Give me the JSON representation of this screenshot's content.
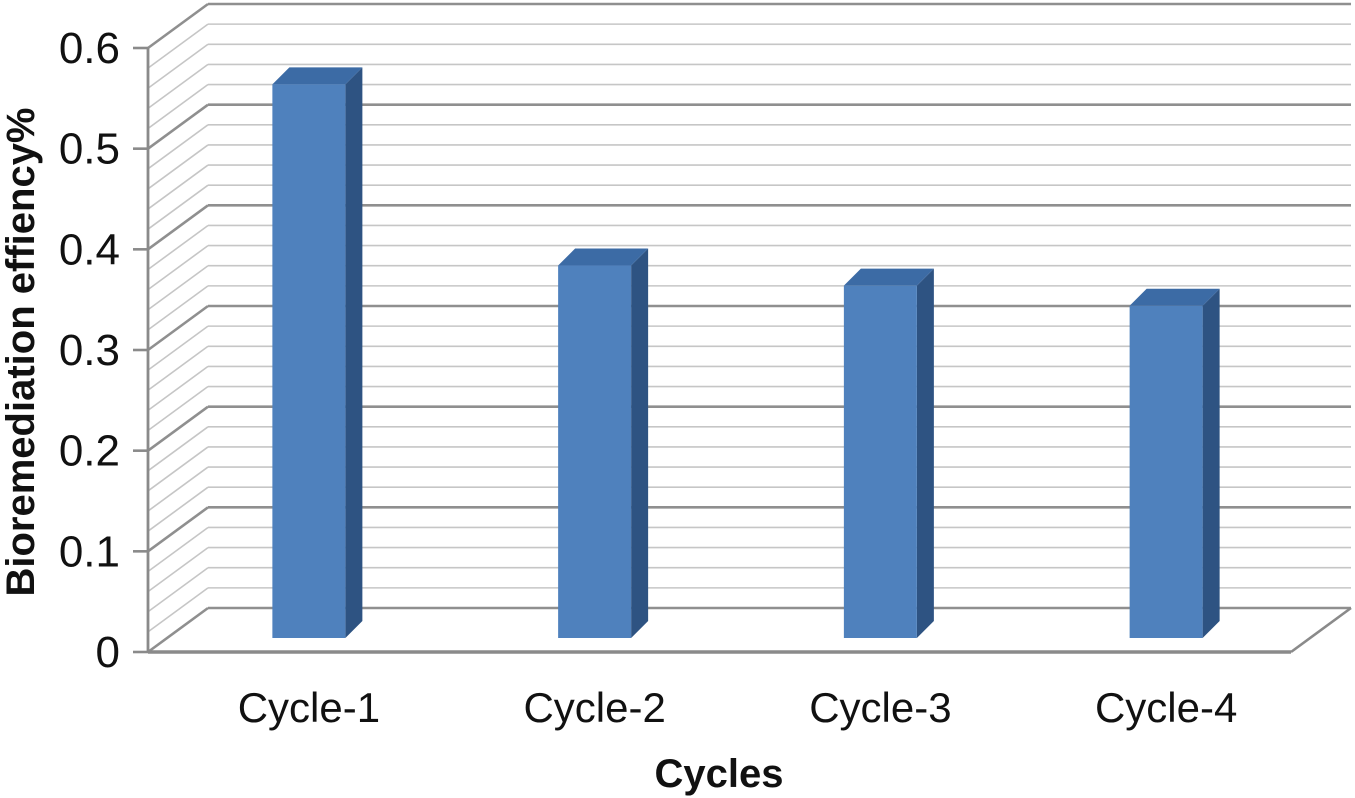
{
  "chart_data": {
    "type": "bar",
    "style": "3d-column",
    "title": "",
    "xlabel": "Cycles",
    "ylabel": "Bioremediation effiency%",
    "categories": [
      "Cycle-1",
      "Cycle-2",
      "Cycle-3",
      "Cycle-4"
    ],
    "values": [
      0.55,
      0.37,
      0.35,
      0.33
    ],
    "ylim": [
      0,
      0.6
    ],
    "ytick_step": 0.1,
    "minor_gridline_step": 0.02,
    "yticks": [
      "0",
      "0.1",
      "0.2",
      "0.3",
      "0.4",
      "0.5",
      "0.6"
    ],
    "legend": "none",
    "grid": "on",
    "colors": {
      "bar_front": "#4F81BD",
      "bar_top": "#3C6BA5",
      "bar_side": "#2E5382",
      "gridline_major": "#8F8F8F",
      "gridline_minor": "#C6C6C6",
      "axis": "#8A8A8A",
      "text": "#111111",
      "background": "#FFFFFF"
    }
  }
}
